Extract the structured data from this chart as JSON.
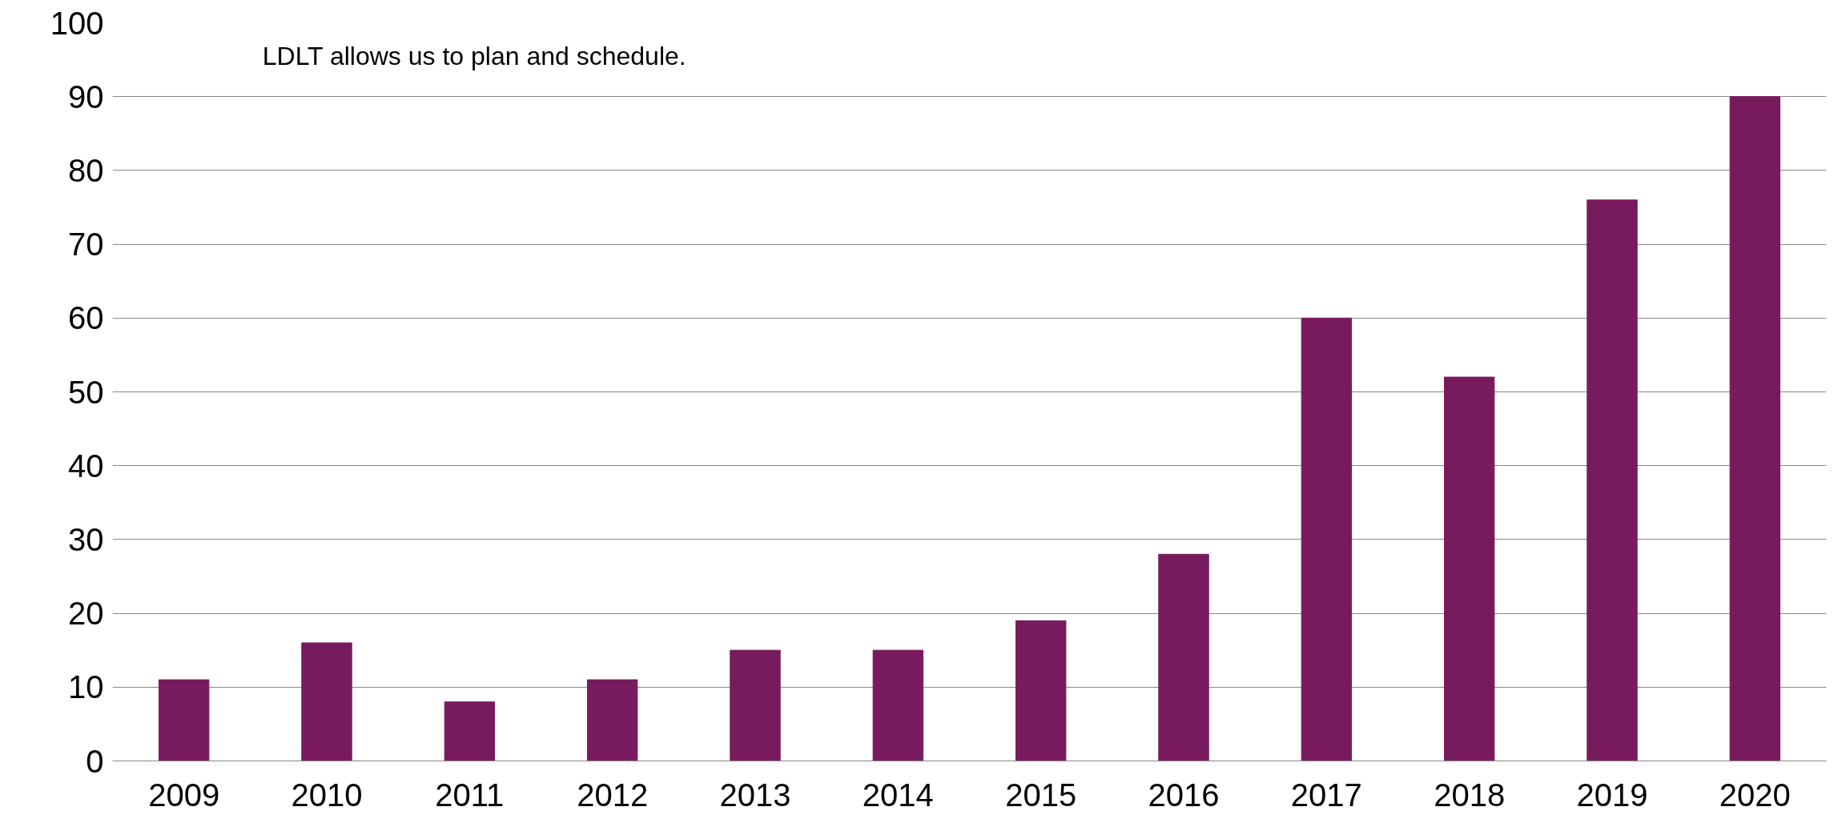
{
  "chart_data": {
    "type": "bar",
    "categories": [
      "2009",
      "2010",
      "2011",
      "2012",
      "2013",
      "2014",
      "2015",
      "2016",
      "2017",
      "2018",
      "2019",
      "2020"
    ],
    "values": [
      11,
      16,
      8,
      11,
      15,
      15,
      19,
      28,
      60,
      52,
      76,
      90
    ],
    "color": "#781b5e",
    "ylim": [
      0,
      100
    ],
    "yticks": [
      0,
      10,
      20,
      30,
      40,
      50,
      60,
      70,
      80,
      90,
      100
    ],
    "grid": "y",
    "annotations": [
      "LDLT allows us to plan and schedule."
    ]
  }
}
